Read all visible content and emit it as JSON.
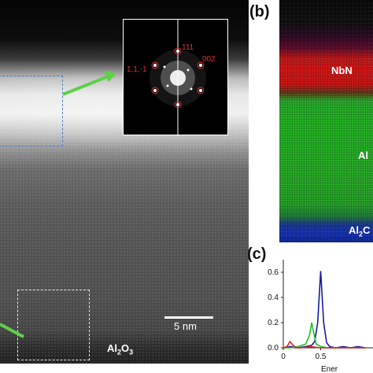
{
  "panel_a": {
    "fft_labels": {
      "top": "111",
      "right": "002",
      "left": "1,1,-1"
    },
    "scale_bar": "5 nm",
    "substrate": {
      "base": "Al",
      "sub1": "2",
      "mid": "O",
      "sub2": "3"
    }
  },
  "panel_b": {
    "label": "(b)",
    "layers": {
      "nbn": "NbN",
      "al": "Al",
      "al2o3": {
        "base": "Al",
        "sub1": "2",
        "mid": "C"
      }
    },
    "colors": {
      "nb": "#d21414",
      "al": "#22b022",
      "o": "#1730b8"
    }
  },
  "panel_c": {
    "label": "(c)",
    "xlabel": "Ener",
    "chart_data": {
      "type": "line",
      "title": "",
      "xlabel": "Ener",
      "ylabel": "",
      "ylim": [
        0.0,
        0.7
      ],
      "yticks": [
        0.0,
        0.2,
        0.4,
        0.6
      ],
      "xticks": [
        0,
        0.5
      ],
      "xlim": [
        0,
        1.2
      ],
      "series": [
        {
          "color": "#1a1aa0",
          "x": [
            0.0,
            0.1,
            0.2,
            0.3,
            0.38,
            0.42,
            0.46,
            0.5,
            0.54,
            0.58,
            0.62,
            0.7,
            0.8,
            0.9,
            1.0,
            1.1
          ],
          "y": [
            0.0,
            0.01,
            0.0,
            0.01,
            0.02,
            0.05,
            0.2,
            0.61,
            0.2,
            0.04,
            0.01,
            0.0,
            0.01,
            0.0,
            0.01,
            0.0
          ]
        },
        {
          "color": "#22c022",
          "x": [
            0.0,
            0.1,
            0.2,
            0.3,
            0.35,
            0.38,
            0.41,
            0.44,
            0.5,
            0.6,
            0.7,
            0.8,
            0.9,
            1.0,
            1.1
          ],
          "y": [
            0.0,
            0.0,
            0.01,
            0.03,
            0.1,
            0.2,
            0.11,
            0.03,
            0.01,
            0.0,
            0.0,
            0.0,
            0.0,
            0.0,
            0.0
          ]
        },
        {
          "color": "#e02020",
          "x": [
            0.0,
            0.05,
            0.09,
            0.13,
            0.18,
            0.25,
            0.35,
            0.5,
            0.7,
            0.9,
            1.1
          ],
          "y": [
            0.0,
            0.01,
            0.05,
            0.02,
            0.0,
            0.0,
            0.01,
            0.0,
            0.0,
            0.0,
            0.0
          ]
        }
      ]
    }
  }
}
